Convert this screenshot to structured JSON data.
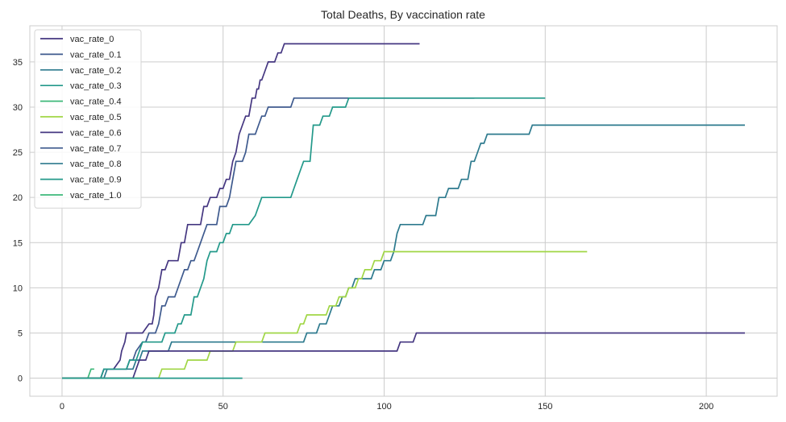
{
  "chart_data": {
    "type": "line",
    "title": "Total Deaths, By vaccination rate",
    "xlabel": "",
    "ylabel": "",
    "xlim": [
      -10,
      222
    ],
    "ylim": [
      -2,
      39
    ],
    "xticks": [
      0,
      50,
      100,
      150,
      200
    ],
    "yticks": [
      0,
      5,
      10,
      15,
      20,
      25,
      30,
      35
    ],
    "grid": true,
    "legend_position": "top-left",
    "series": [
      {
        "name": "vac_rate_0",
        "color": "#453781",
        "step": true,
        "points": [
          [
            0,
            0
          ],
          [
            12,
            0
          ],
          [
            13,
            1
          ],
          [
            16,
            1
          ],
          [
            18,
            2
          ],
          [
            18.5,
            3
          ],
          [
            19.5,
            4
          ],
          [
            20,
            5
          ],
          [
            24,
            5
          ],
          [
            25,
            5
          ],
          [
            27,
            6
          ],
          [
            28,
            6
          ],
          [
            28.5,
            7
          ],
          [
            29,
            9
          ],
          [
            30,
            10
          ],
          [
            31,
            12
          ],
          [
            32,
            12
          ],
          [
            33,
            13
          ],
          [
            36,
            13
          ],
          [
            37,
            15
          ],
          [
            38,
            15
          ],
          [
            38.5,
            16
          ],
          [
            39,
            17
          ],
          [
            43,
            17
          ],
          [
            44,
            19
          ],
          [
            45,
            19
          ],
          [
            46,
            20
          ],
          [
            48,
            20
          ],
          [
            49,
            21
          ],
          [
            50,
            21
          ],
          [
            51,
            22
          ],
          [
            52,
            22
          ],
          [
            52.5,
            23
          ],
          [
            53,
            24
          ],
          [
            54,
            25
          ],
          [
            54.5,
            26
          ],
          [
            55,
            27
          ],
          [
            56,
            28
          ],
          [
            57,
            29
          ],
          [
            58,
            29
          ],
          [
            59,
            31
          ],
          [
            60,
            31
          ],
          [
            60.5,
            32
          ],
          [
            61,
            32
          ],
          [
            61.5,
            33
          ],
          [
            62,
            33
          ],
          [
            63,
            34
          ],
          [
            64,
            35
          ],
          [
            66,
            35
          ],
          [
            67,
            36
          ],
          [
            68,
            36
          ],
          [
            69,
            37
          ],
          [
            111,
            37
          ]
        ]
      },
      {
        "name": "vac_rate_0.1",
        "color": "#3e5a8e",
        "step": true,
        "points": [
          [
            0,
            0
          ],
          [
            12,
            0
          ],
          [
            13,
            1
          ],
          [
            20,
            1
          ],
          [
            21,
            2
          ],
          [
            22,
            2
          ],
          [
            23,
            3
          ],
          [
            25,
            4
          ],
          [
            26,
            4
          ],
          [
            27,
            5
          ],
          [
            29,
            5
          ],
          [
            30,
            6
          ],
          [
            31,
            8
          ],
          [
            32,
            8
          ],
          [
            33,
            9
          ],
          [
            35,
            9
          ],
          [
            36,
            10
          ],
          [
            37,
            11
          ],
          [
            38,
            12
          ],
          [
            39,
            12
          ],
          [
            40,
            13
          ],
          [
            41,
            13
          ],
          [
            42,
            14
          ],
          [
            43,
            15
          ],
          [
            44,
            16
          ],
          [
            45,
            17
          ],
          [
            48,
            17
          ],
          [
            49,
            19
          ],
          [
            51,
            19
          ],
          [
            52,
            20
          ],
          [
            53,
            22
          ],
          [
            54,
            24
          ],
          [
            56,
            24
          ],
          [
            57,
            25
          ],
          [
            58,
            27
          ],
          [
            60,
            27
          ],
          [
            61,
            28
          ],
          [
            62,
            29
          ],
          [
            63,
            29
          ],
          [
            64,
            30
          ],
          [
            71,
            30
          ],
          [
            72,
            31
          ],
          [
            128,
            31
          ]
        ]
      },
      {
        "name": "vac_rate_0.2",
        "color": "#2d7a8e",
        "step": true,
        "points": [
          [
            0,
            0
          ],
          [
            13,
            0
          ],
          [
            14,
            1
          ],
          [
            22,
            1
          ],
          [
            23,
            2
          ],
          [
            24,
            2
          ],
          [
            25,
            3
          ],
          [
            33,
            3
          ],
          [
            34,
            4
          ],
          [
            56,
            4
          ],
          [
            57,
            4
          ],
          [
            75,
            4
          ],
          [
            76,
            5
          ],
          [
            79,
            5
          ],
          [
            80,
            6
          ],
          [
            82,
            6
          ],
          [
            83,
            7
          ],
          [
            84,
            8
          ],
          [
            86,
            8
          ],
          [
            87,
            9
          ],
          [
            88,
            9
          ],
          [
            89,
            10
          ],
          [
            90,
            10
          ],
          [
            91,
            11
          ],
          [
            96,
            11
          ],
          [
            97,
            12
          ],
          [
            99,
            12
          ],
          [
            100,
            13
          ],
          [
            102,
            13
          ],
          [
            103,
            14
          ],
          [
            104,
            16
          ],
          [
            105,
            17
          ],
          [
            112,
            17
          ],
          [
            113,
            18
          ],
          [
            116,
            18
          ],
          [
            117,
            20
          ],
          [
            119,
            20
          ],
          [
            120,
            21
          ],
          [
            123,
            21
          ],
          [
            124,
            22
          ],
          [
            126,
            22
          ],
          [
            127,
            24
          ],
          [
            128,
            24
          ],
          [
            129,
            25
          ],
          [
            130,
            26
          ],
          [
            131,
            26
          ],
          [
            132,
            27
          ],
          [
            145,
            27
          ],
          [
            146,
            28
          ],
          [
            212,
            28
          ]
        ]
      },
      {
        "name": "vac_rate_0.3",
        "color": "#23998a",
        "step": true,
        "points": [
          [
            0,
            0
          ],
          [
            12,
            0
          ],
          [
            13,
            1
          ],
          [
            20,
            1
          ],
          [
            21,
            2
          ],
          [
            23,
            2
          ],
          [
            24,
            3
          ],
          [
            25,
            4
          ],
          [
            31,
            4
          ],
          [
            32,
            5
          ],
          [
            35,
            5
          ],
          [
            36,
            6
          ],
          [
            37,
            6
          ],
          [
            38,
            7
          ],
          [
            40,
            7
          ],
          [
            41,
            9
          ],
          [
            42,
            9
          ],
          [
            43,
            10
          ],
          [
            44,
            11
          ],
          [
            45,
            13
          ],
          [
            46,
            14
          ],
          [
            48,
            14
          ],
          [
            49,
            15
          ],
          [
            50,
            15
          ],
          [
            51,
            16
          ],
          [
            52,
            16
          ],
          [
            53,
            17
          ],
          [
            58,
            17
          ],
          [
            60,
            18
          ],
          [
            61,
            19
          ],
          [
            62,
            20
          ],
          [
            71,
            20
          ],
          [
            72,
            21
          ],
          [
            73,
            22
          ],
          [
            74,
            23
          ],
          [
            75,
            24
          ],
          [
            77,
            24
          ],
          [
            78,
            28
          ],
          [
            79,
            28
          ],
          [
            80,
            28
          ],
          [
            81,
            29
          ],
          [
            83,
            29
          ],
          [
            84,
            30
          ],
          [
            88,
            30
          ],
          [
            89,
            31
          ],
          [
            150,
            31
          ]
        ]
      },
      {
        "name": "vac_rate_0.4",
        "color": "#3db879",
        "step": true,
        "points": [
          [
            0,
            0
          ],
          [
            8,
            0
          ],
          [
            9,
            1
          ],
          [
            10,
            1
          ]
        ]
      },
      {
        "name": "vac_rate_0.5",
        "color": "#a0d645",
        "step": true,
        "points": [
          [
            0,
            0
          ],
          [
            30,
            0
          ],
          [
            31,
            1
          ],
          [
            38,
            1
          ],
          [
            39,
            2
          ],
          [
            45,
            2
          ],
          [
            46,
            3
          ],
          [
            53,
            3
          ],
          [
            54,
            4
          ],
          [
            62,
            4
          ],
          [
            63,
            5
          ],
          [
            73,
            5
          ],
          [
            74,
            6
          ],
          [
            75,
            6
          ],
          [
            76,
            7
          ],
          [
            82,
            7
          ],
          [
            83,
            8
          ],
          [
            84,
            8
          ],
          [
            85,
            8
          ],
          [
            86,
            9
          ],
          [
            88,
            9
          ],
          [
            89,
            10
          ],
          [
            91,
            10
          ],
          [
            92,
            11
          ],
          [
            93,
            11
          ],
          [
            94,
            12
          ],
          [
            96,
            12
          ],
          [
            97,
            13
          ],
          [
            99,
            13
          ],
          [
            100,
            14
          ],
          [
            163,
            14
          ]
        ]
      },
      {
        "name": "vac_rate_0.6",
        "color": "#453781",
        "step": true,
        "points": [
          [
            0,
            0
          ],
          [
            22,
            0
          ],
          [
            23,
            1
          ],
          [
            24,
            2
          ],
          [
            26,
            2
          ],
          [
            27,
            3
          ],
          [
            104,
            3
          ],
          [
            105,
            4
          ],
          [
            109,
            4
          ],
          [
            110,
            5
          ],
          [
            212,
            5
          ]
        ]
      },
      {
        "name": "vac_rate_0.7",
        "color": "#3e5a8e",
        "step": true,
        "points": [
          [
            0,
            0
          ]
        ]
      },
      {
        "name": "vac_rate_0.8",
        "color": "#2d7a8e",
        "step": true,
        "points": [
          [
            0,
            0
          ]
        ]
      },
      {
        "name": "vac_rate_0.9",
        "color": "#23998a",
        "step": true,
        "points": [
          [
            0,
            0
          ],
          [
            56,
            0
          ]
        ]
      },
      {
        "name": "vac_rate_1.0",
        "color": "#3db879",
        "step": true,
        "points": [
          [
            0,
            0
          ]
        ]
      }
    ]
  }
}
